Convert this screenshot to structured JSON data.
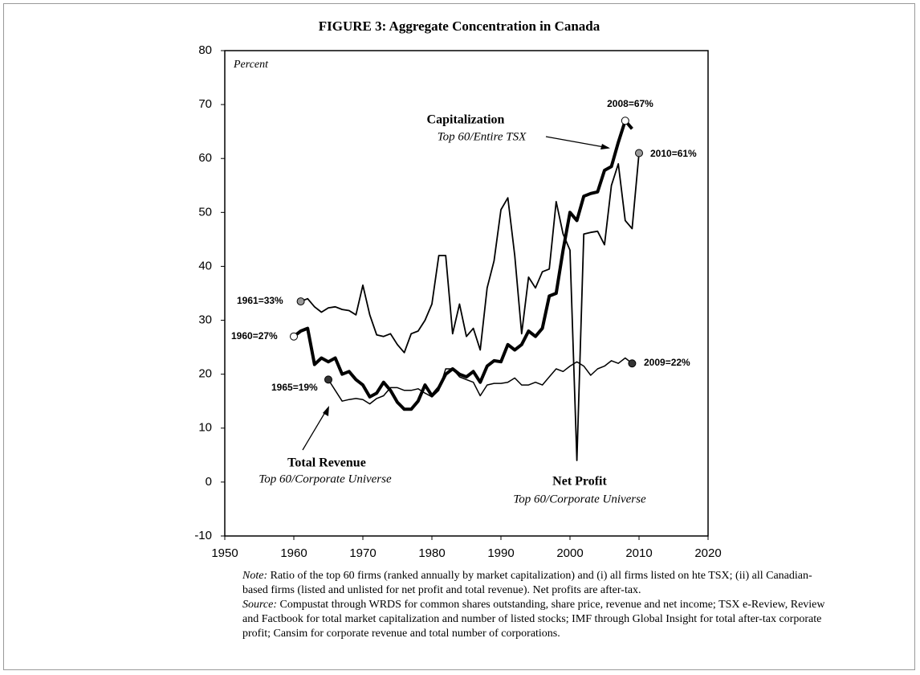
{
  "chart_data": {
    "type": "line",
    "title": "FIGURE 3:  Aggregate Concentration in Canada",
    "y_label": "Percent",
    "x": [
      1960,
      1961,
      1962,
      1963,
      1964,
      1965,
      1966,
      1967,
      1968,
      1969,
      1970,
      1971,
      1972,
      1973,
      1974,
      1975,
      1976,
      1977,
      1978,
      1979,
      1980,
      1981,
      1982,
      1983,
      1984,
      1985,
      1986,
      1987,
      1988,
      1989,
      1990,
      1991,
      1992,
      1993,
      1994,
      1995,
      1996,
      1997,
      1998,
      1999,
      2000,
      2001,
      2002,
      2003,
      2004,
      2005,
      2006,
      2007,
      2008,
      2009,
      2010
    ],
    "series": [
      {
        "name": "Capitalization",
        "sub_label": "Top 60/Entire TSX",
        "color": "#000000",
        "line_width": 4,
        "values": [
          27,
          28,
          28.5,
          21.8,
          23,
          22.3,
          23,
          20,
          20.5,
          19,
          18,
          15.8,
          16.5,
          18.5,
          17,
          14.8,
          13.5,
          13.5,
          15,
          18,
          16,
          17.5,
          20,
          21,
          20,
          19.5,
          20.5,
          18.5,
          21.5,
          22.5,
          22.3,
          25.5,
          24.5,
          25.5,
          28,
          27,
          28.5,
          34.5,
          35,
          43,
          50,
          48.5,
          53,
          53.5,
          53.8,
          57.8,
          58.5,
          63,
          67,
          65.5,
          null
        ]
      },
      {
        "name": "Net Profit",
        "sub_label": "Top 60/Corporate Universe",
        "color": "#000000",
        "line_width": 1.8,
        "values": [
          null,
          33.5,
          34,
          32.5,
          31.5,
          32.3,
          32.5,
          32,
          31.8,
          31,
          36.5,
          31,
          27.3,
          27,
          27.5,
          25.5,
          24,
          27.5,
          28,
          30,
          33,
          42,
          42,
          27.5,
          33,
          27,
          28.5,
          24.5,
          36,
          41,
          50.5,
          52.7,
          42,
          27.5,
          38,
          36,
          39,
          39.5,
          52,
          46,
          43,
          4,
          46,
          46.3,
          46.5,
          44,
          55,
          59,
          48.5,
          47,
          61
        ]
      },
      {
        "name": "Total Revenue",
        "sub_label": "Top 60/Corporate Universe",
        "color": "#000000",
        "line_width": 1.5,
        "values": [
          null,
          null,
          null,
          null,
          null,
          19,
          17,
          15,
          15.3,
          15.5,
          15.3,
          14.5,
          15.5,
          16,
          17.5,
          17.5,
          17,
          17,
          17.3,
          16.5,
          15.8,
          17,
          21,
          21,
          19.5,
          19,
          18.5,
          16,
          18,
          18.3,
          18.3,
          18.5,
          19.3,
          18,
          18,
          18.5,
          18,
          19.5,
          21,
          20.5,
          21.5,
          22.3,
          21.5,
          19.8,
          21,
          21.5,
          22.5,
          22,
          23,
          22,
          null
        ]
      }
    ],
    "annotations": [
      "2008=67%",
      "2010=61%",
      "1961=33%",
      "1960=27%",
      "1965=19%",
      "2009=22%"
    ],
    "xlim": [
      1950,
      2020
    ],
    "xticks": [
      1950,
      1960,
      1970,
      1980,
      1990,
      2000,
      2010,
      2020
    ],
    "ylim": [
      -10,
      80
    ],
    "yticks": [
      -10,
      0,
      10,
      20,
      30,
      40,
      50,
      60,
      70,
      80
    ],
    "note": {
      "label": "Note:",
      "text": " Ratio of the top 60 firms (ranked annually by market capitalization) and (i) all firms listed on hte TSX; (ii) all Canadian-based firms (listed and unlisted for net profit and total revenue). Net profits are after-tax."
    },
    "source": {
      "label": "Source:",
      "text": " Compustat through WRDS for common shares outstanding, share price, revenue and net income; TSX e-Review, Review and Factbook for total market capitalization and number of listed stocks; IMF through Global Insight for total after-tax corporate profit; Cansim for corporate revenue and total number of corporations."
    }
  }
}
